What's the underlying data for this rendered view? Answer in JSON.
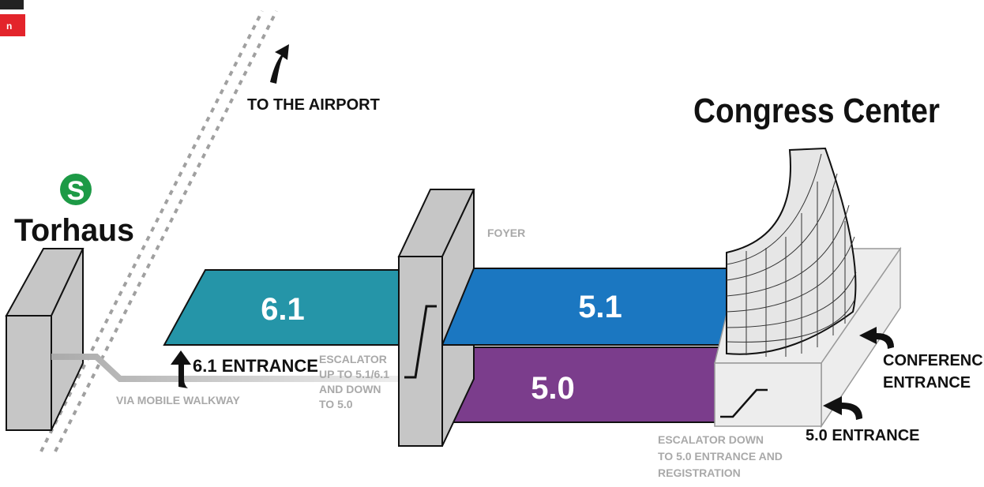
{
  "badge": "n",
  "airport": "TO THE AIRPORT",
  "congress_center": "Congress Center",
  "station_logo": "S",
  "station": "Torhaus",
  "foyer": "FOYER",
  "levels": {
    "l61": "6.1",
    "l51": "5.1",
    "l50": "5.0"
  },
  "entrance_61": "6.1 ENTRANCE",
  "escalator_note": [
    "ESCALATOR",
    "UP TO 5.1/6.1",
    "AND DOWN",
    "TO 5.0"
  ],
  "walkway": "VIA MOBILE WALKWAY",
  "conference_entrance": [
    "CONFERENCE",
    "ENTRANCE"
  ],
  "entrance_50": "5.0 ENTRANCE",
  "escalator_down": [
    "ESCALATOR DOWN",
    "TO 5.0 ENTRANCE AND",
    "REGISTRATION"
  ]
}
